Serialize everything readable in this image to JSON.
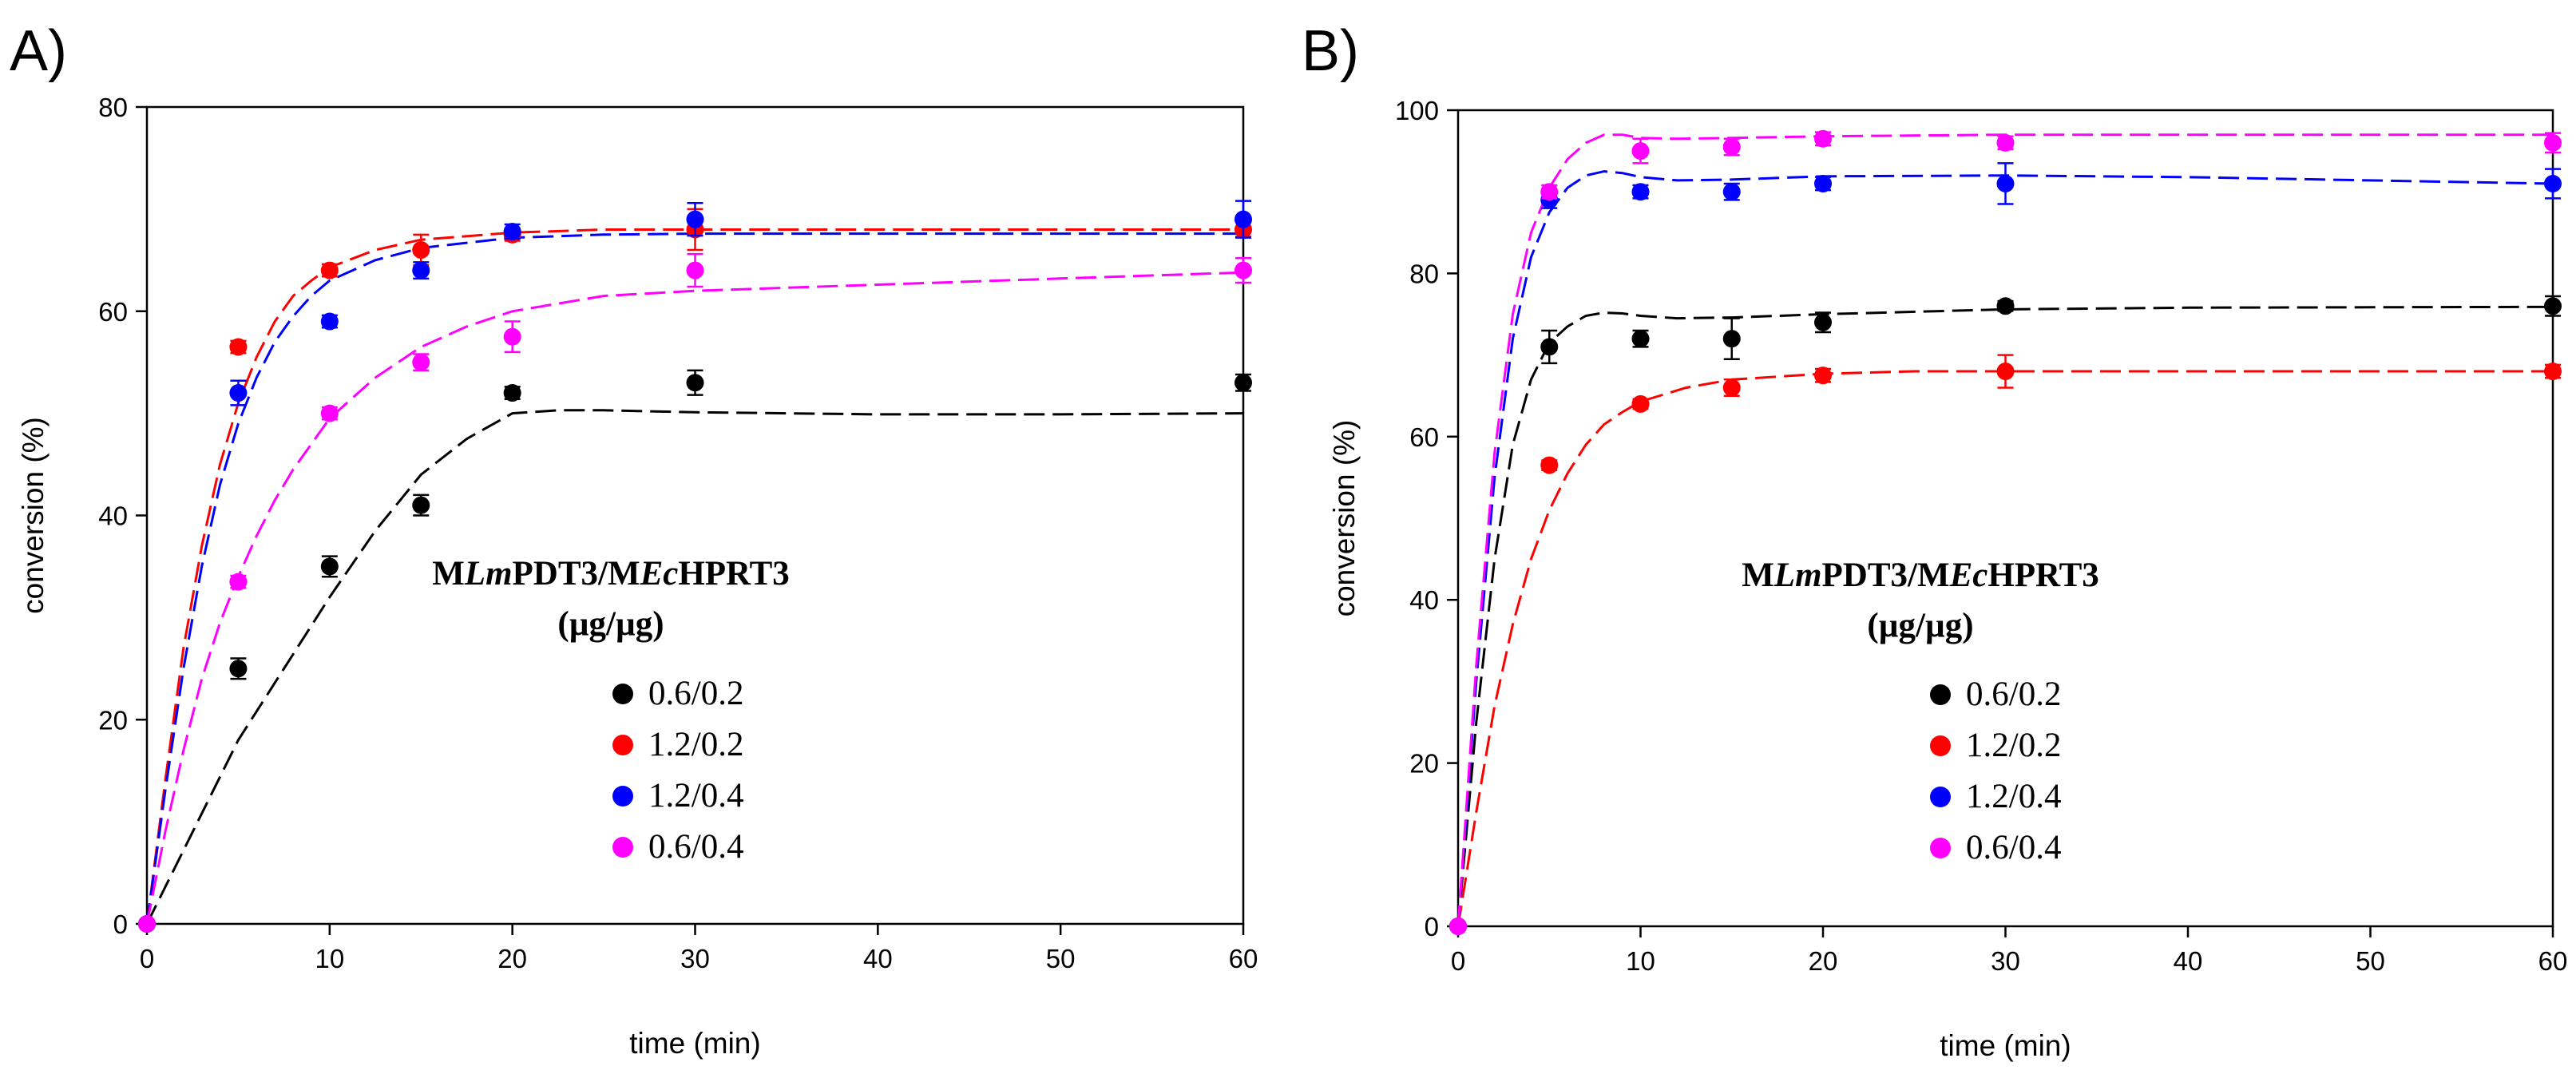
{
  "colors": {
    "0.6/0.2": "#000000",
    "1.2/0.2": "#ff0000",
    "1.2/0.4": "#0000ff",
    "0.6/0.4": "#ff00ff"
  },
  "chart_data": [
    {
      "type": "scatter",
      "panel_label": "A)",
      "title": "",
      "xlabel": "time (min)",
      "ylabel": "conversion (%)",
      "xlim": [
        0,
        60
      ],
      "ylim": [
        0,
        80
      ],
      "xticks": [
        0,
        10,
        20,
        30,
        40,
        50,
        60
      ],
      "yticks": [
        0,
        20,
        40,
        60,
        80
      ],
      "legend_title_parts": [
        {
          "text": "M",
          "italic": false
        },
        {
          "text": "Lm",
          "italic": true
        },
        {
          "text": "PDT3/M",
          "italic": false
        },
        {
          "text": "Ec",
          "italic": true
        },
        {
          "text": "HPRT3",
          "italic": false
        }
      ],
      "legend_subtitle": "(µg/µg)",
      "legend_placement": "center",
      "fit_style": "dashed",
      "series": [
        {
          "name": "0.6/0.2",
          "color": "#000000",
          "x": [
            0,
            5,
            10,
            15,
            20,
            30,
            60
          ],
          "y": [
            0,
            25,
            35,
            41,
            52,
            53,
            53
          ],
          "err": [
            0,
            1,
            1,
            1,
            0.6,
            1.2,
            0.8
          ],
          "fit_x": [
            0,
            2.5,
            5,
            7.5,
            10,
            12.5,
            15,
            17.5,
            20,
            22.5,
            25,
            30,
            40,
            50,
            60
          ],
          "fit_y": [
            0,
            9,
            18,
            25,
            32,
            38.5,
            44,
            47.5,
            50,
            50.3,
            50.3,
            50.1,
            49.9,
            49.9,
            50
          ]
        },
        {
          "name": "1.2/0.2",
          "color": "#ff0000",
          "x": [
            0,
            5,
            10,
            15,
            20,
            30,
            60
          ],
          "y": [
            0,
            56.5,
            64,
            66,
            67.5,
            68,
            68
          ],
          "err": [
            0,
            0.6,
            0.6,
            1.5,
            0.6,
            2,
            0.7
          ],
          "fit_x": [
            0,
            1,
            2,
            3,
            4,
            5,
            6,
            7,
            8,
            9,
            10,
            12.5,
            15,
            20,
            25,
            30,
            40,
            50,
            60
          ],
          "fit_y": [
            0,
            14,
            27,
            37,
            45,
            51,
            55.5,
            59,
            61.5,
            63,
            64.3,
            66,
            67,
            67.7,
            68,
            68,
            68,
            68,
            68
          ]
        },
        {
          "name": "1.2/0.4",
          "color": "#0000ff",
          "x": [
            0,
            5,
            10,
            15,
            20,
            30,
            60
          ],
          "y": [
            0,
            52,
            59,
            64,
            67.8,
            69,
            69
          ],
          "err": [
            0,
            1.2,
            0.6,
            0.8,
            0.7,
            1.6,
            1.8
          ],
          "fit_x": [
            0,
            1,
            2,
            3,
            4,
            5,
            6,
            7,
            8,
            9,
            10,
            12.5,
            15,
            20,
            25,
            30,
            40,
            50,
            60
          ],
          "fit_y": [
            0,
            13,
            25,
            35,
            43,
            49,
            53.5,
            57,
            59.5,
            61.5,
            63,
            65,
            66.2,
            67.2,
            67.5,
            67.6,
            67.6,
            67.6,
            67.6
          ]
        },
        {
          "name": "0.6/0.4",
          "color": "#ff00ff",
          "x": [
            0,
            5,
            10,
            15,
            20,
            30,
            60
          ],
          "y": [
            0,
            33.5,
            50,
            55,
            57.5,
            64,
            64
          ],
          "err": [
            0,
            0.6,
            0.6,
            0.8,
            1.5,
            1.6,
            1.2
          ],
          "fit_x": [
            0,
            1,
            2,
            3,
            4,
            5,
            6,
            7,
            8,
            10,
            12.5,
            15,
            17.5,
            20,
            25,
            30,
            40,
            50,
            60
          ],
          "fit_y": [
            0,
            9,
            17,
            24,
            29.5,
            34,
            38,
            41.5,
            44.5,
            49.5,
            53.5,
            56.5,
            58.5,
            60,
            61.5,
            62,
            62.6,
            63.2,
            63.8
          ]
        }
      ]
    },
    {
      "type": "scatter",
      "panel_label": "B)",
      "title": "",
      "xlabel": "time (min)",
      "ylabel": "conversion (%)",
      "xlim": [
        0,
        60
      ],
      "ylim": [
        0,
        100
      ],
      "xticks": [
        0,
        10,
        20,
        30,
        40,
        50,
        60
      ],
      "yticks": [
        0,
        20,
        40,
        60,
        80,
        100
      ],
      "legend_title_parts": [
        {
          "text": "M",
          "italic": false
        },
        {
          "text": "Lm",
          "italic": true
        },
        {
          "text": "PDT3/M",
          "italic": false
        },
        {
          "text": "Ec",
          "italic": true
        },
        {
          "text": "HPRT3",
          "italic": false
        }
      ],
      "legend_subtitle": "(µg/µg)",
      "legend_placement": "center",
      "fit_style": "dashed",
      "series": [
        {
          "name": "0.6/0.2",
          "color": "#000000",
          "x": [
            0,
            5,
            10,
            15,
            20,
            30,
            60
          ],
          "y": [
            0,
            71,
            72,
            72,
            74,
            76,
            76
          ],
          "err": [
            0,
            2,
            1,
            2.5,
            1.2,
            0.6,
            1.2
          ],
          "fit_x": [
            0,
            1,
            2,
            3,
            4,
            5,
            6,
            7,
            8,
            9,
            10,
            12,
            15,
            20,
            30,
            40,
            60
          ],
          "fit_y": [
            0,
            25,
            45,
            59,
            67,
            71.5,
            73.5,
            74.8,
            75.2,
            75.1,
            74.8,
            74.5,
            74.6,
            75,
            75.6,
            75.8,
            75.9
          ]
        },
        {
          "name": "1.2/0.2",
          "color": "#ff0000",
          "x": [
            0,
            5,
            10,
            15,
            20,
            30,
            60
          ],
          "y": [
            0,
            56.5,
            64,
            66,
            67.5,
            68,
            68
          ],
          "err": [
            0,
            0.6,
            0.6,
            1,
            0.8,
            2,
            0.8
          ],
          "fit_x": [
            0,
            1,
            2,
            3,
            4,
            5,
            6,
            7,
            8,
            9,
            10,
            12.5,
            15,
            20,
            25,
            30,
            40,
            50,
            60
          ],
          "fit_y": [
            0,
            14,
            27,
            37,
            45,
            51,
            55.5,
            59,
            61.5,
            63,
            64.3,
            66,
            67,
            67.7,
            68,
            68,
            68,
            68,
            68
          ]
        },
        {
          "name": "1.2/0.4",
          "color": "#0000ff",
          "x": [
            0,
            5,
            10,
            15,
            20,
            30,
            60
          ],
          "y": [
            0,
            89,
            90,
            90,
            91,
            91,
            91
          ],
          "err": [
            0,
            1,
            0.8,
            1,
            0.8,
            2.5,
            1.8
          ],
          "fit_x": [
            0,
            1,
            2,
            3,
            4,
            5,
            6,
            7,
            8,
            9,
            10,
            12,
            15,
            20,
            30,
            40,
            60
          ],
          "fit_y": [
            0,
            30,
            55,
            72,
            82,
            87.5,
            90.5,
            92,
            92.5,
            92.3,
            91.8,
            91.4,
            91.5,
            91.9,
            92,
            91.8,
            91
          ]
        },
        {
          "name": "0.6/0.4",
          "color": "#ff00ff",
          "x": [
            0,
            5,
            10,
            15,
            20,
            30,
            60
          ],
          "y": [
            0,
            90,
            95,
            95.5,
            96.5,
            96,
            96
          ],
          "err": [
            0,
            0.8,
            1.5,
            1,
            0.8,
            0.8,
            1.2
          ],
          "fit_x": [
            0,
            1,
            2,
            3,
            4,
            5,
            6,
            7,
            8,
            9,
            10,
            12,
            15,
            20,
            30,
            40,
            60
          ],
          "fit_y": [
            0,
            32,
            58,
            75,
            85,
            90.5,
            94,
            96,
            97,
            97,
            96.6,
            96.5,
            96.6,
            96.8,
            97,
            97,
            97
          ]
        }
      ]
    }
  ]
}
